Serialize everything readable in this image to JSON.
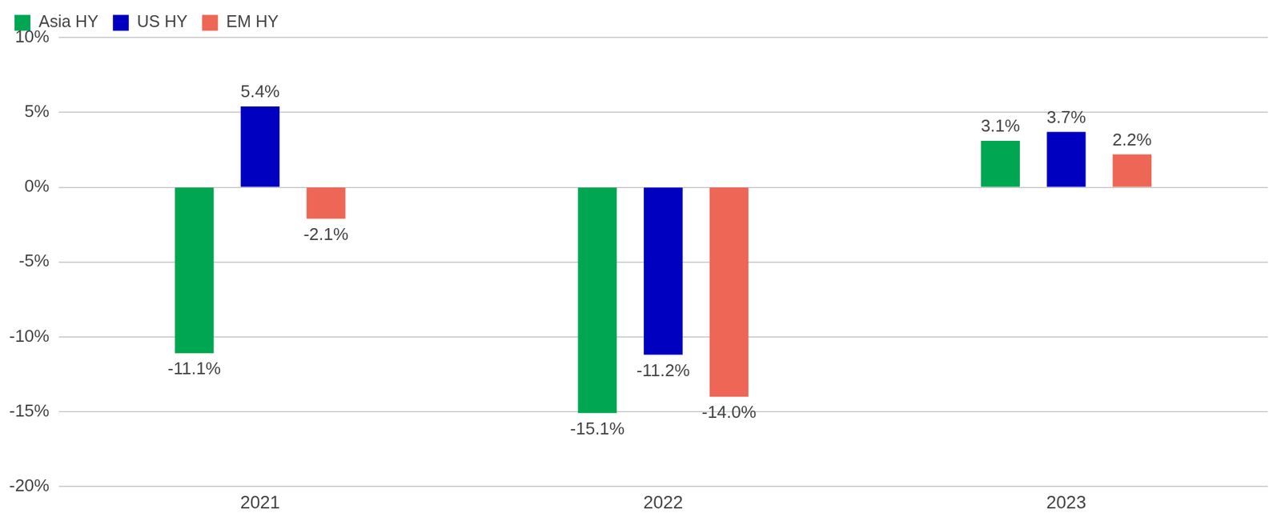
{
  "chart_data": {
    "type": "bar",
    "categories": [
      "2021",
      "2022",
      "2023"
    ],
    "series": [
      {
        "name": "Asia HY",
        "color": "#00a651",
        "values": [
          -11.1,
          -15.1,
          3.1
        ],
        "value_labels": [
          "-11.1%",
          "-15.1%",
          "3.1%"
        ]
      },
      {
        "name": "US HY",
        "color": "#0000c0",
        "values": [
          5.4,
          -11.2,
          3.7
        ],
        "value_labels": [
          "5.4%",
          "-11.2%",
          "3.7%"
        ]
      },
      {
        "name": "EM HY",
        "color": "#ee6655",
        "values": [
          -2.1,
          -14.0,
          2.2
        ],
        "value_labels": [
          "-2.1%",
          "-14.0%",
          "2.2%"
        ]
      }
    ],
    "ylim": [
      -20,
      10
    ],
    "yticks": [
      {
        "value": -20,
        "label": "-20%"
      },
      {
        "value": -15,
        "label": "-15%"
      },
      {
        "value": -10,
        "label": "-10%"
      },
      {
        "value": -5,
        "label": "-5%"
      },
      {
        "value": 0,
        "label": "0%"
      },
      {
        "value": 5,
        "label": "5%"
      },
      {
        "value": 10,
        "label": "10%"
      }
    ],
    "grid": true,
    "legend": "top-left",
    "data_labels": true
  }
}
